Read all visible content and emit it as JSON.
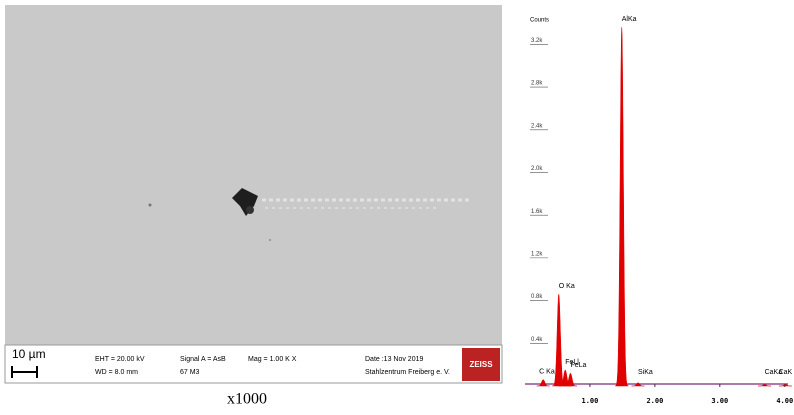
{
  "sem": {
    "scale_bar": "10 µm",
    "info": [
      "EHT = 20.00 kV",
      "WD = 8.0 mm",
      "Signal A = AsB",
      "67 M3",
      "Mag = 1.00 K X",
      "Date :13 Nov 2019",
      "Stahlzentrum Freiberg e. V.",
      "ZEISS"
    ]
  },
  "caption": "x1000",
  "spectrum": {
    "type": "spectrum",
    "y_label": "Counts",
    "color": "#e00000",
    "xlim": [
      0,
      4.05
    ],
    "xticks": [
      {
        "value": 1,
        "label": "1.00"
      },
      {
        "value": 2,
        "label": "2.00"
      },
      {
        "value": 3,
        "label": "3.00"
      },
      {
        "value": 4,
        "label": "4.00"
      }
    ],
    "ylim": [
      0,
      3400
    ],
    "yticks": [
      {
        "value": 400,
        "label": "0.4k"
      },
      {
        "value": 800,
        "label": "0.8k"
      },
      {
        "value": 1200,
        "label": "1.2k"
      },
      {
        "value": 1600,
        "label": "1.6k"
      },
      {
        "value": 2000,
        "label": "2.0k"
      },
      {
        "value": 2400,
        "label": "2.4k"
      },
      {
        "value": 2800,
        "label": "2.8k"
      },
      {
        "value": 3200,
        "label": "3.2k"
      }
    ],
    "peaks": [
      {
        "label": "C Ka",
        "energy": 0.28,
        "counts": 60
      },
      {
        "label": "O Ka",
        "energy": 0.52,
        "counts": 860
      },
      {
        "label": "FeLl",
        "energy": 0.62,
        "counts": 150
      },
      {
        "label": "FeLa",
        "energy": 0.7,
        "counts": 120
      },
      {
        "label": "AlKa",
        "energy": 1.49,
        "counts": 3360
      },
      {
        "label": "SiKa",
        "energy": 1.74,
        "counts": 30
      },
      {
        "label": "CaKa",
        "energy": 3.69,
        "counts": 15
      },
      {
        "label": "CaK",
        "energy": 4.01,
        "counts": 15
      }
    ]
  }
}
